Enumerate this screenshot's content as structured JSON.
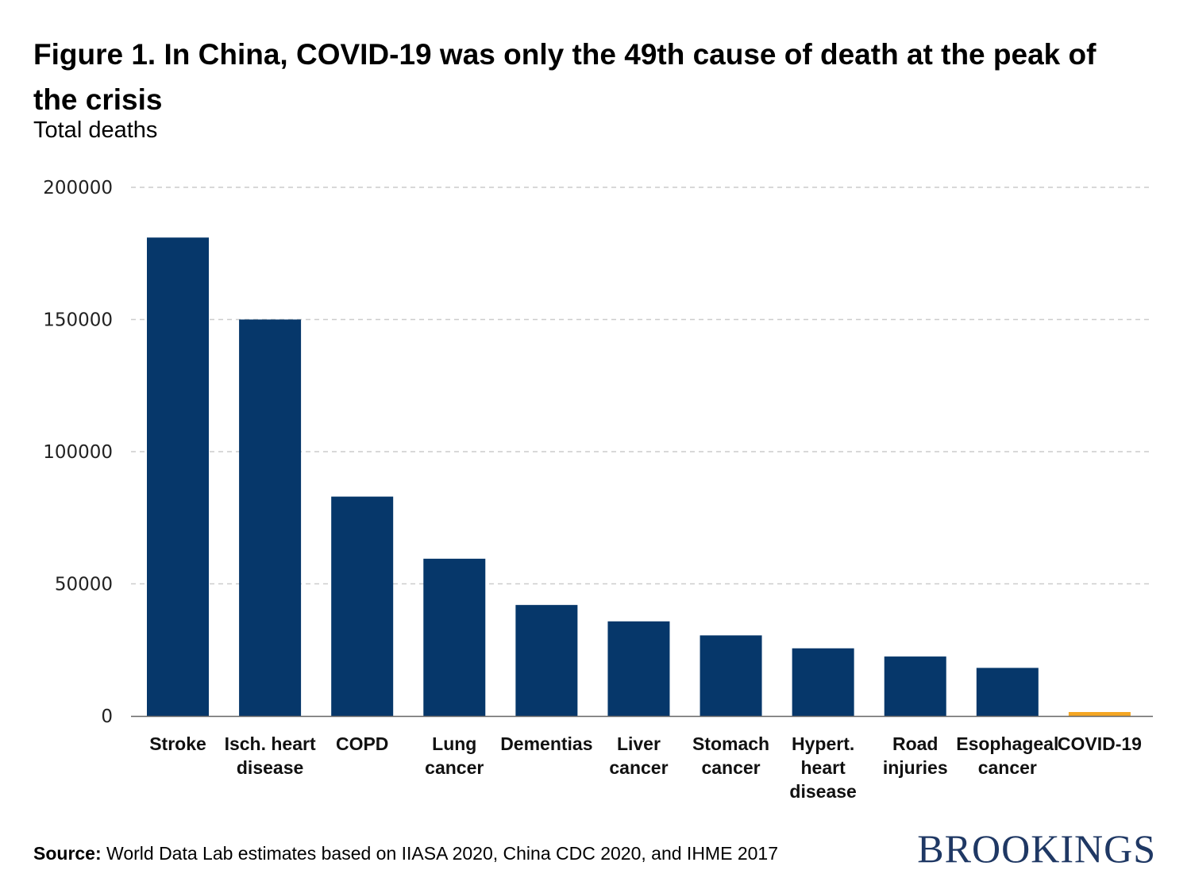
{
  "header": {
    "title": "Figure 1. In China, COVID-19 was only the 49th cause of death at the peak of the crisis",
    "subtitle": "Total deaths"
  },
  "footer": {
    "source_label": "Source:",
    "source_text": "World Data Lab estimates based on IIASA 2020, China CDC 2020, and IHME 2017",
    "logo": "BROOKINGS"
  },
  "colors": {
    "bar": "#06376a",
    "highlight": "#f5a623",
    "grid": "#cccccc",
    "axis": "#666666"
  },
  "chart_data": {
    "type": "bar",
    "title": "Figure 1. In China, COVID-19 was only the 49th cause of death at the peak of the crisis",
    "ylabel": "Total deaths",
    "xlabel": "",
    "ylim": [
      0,
      200000
    ],
    "yticks": [
      0,
      50000,
      100000,
      150000,
      200000
    ],
    "grid": true,
    "categories": [
      [
        "Stroke"
      ],
      [
        "Isch. heart",
        "disease"
      ],
      [
        "COPD"
      ],
      [
        "Lung",
        "cancer"
      ],
      [
        "Dementias"
      ],
      [
        "Liver",
        "cancer"
      ],
      [
        "Stomach",
        "cancer"
      ],
      [
        "Hypert.",
        "heart",
        "disease"
      ],
      [
        "Road",
        "injuries"
      ],
      [
        "Esophageal",
        "cancer"
      ],
      [
        "COVID-19"
      ]
    ],
    "values": [
      181000,
      150000,
      83000,
      59500,
      42000,
      35800,
      30500,
      25600,
      22500,
      18200,
      1500
    ],
    "highlight_index": 10
  }
}
